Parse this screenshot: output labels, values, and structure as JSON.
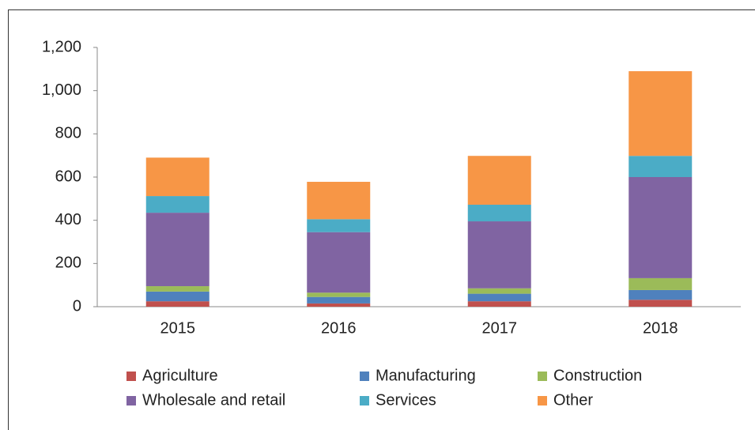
{
  "chart_data": {
    "type": "stacked_bar",
    "categories": [
      "2015",
      "2016",
      "2017",
      "2018"
    ],
    "series": [
      {
        "name": "Agriculture",
        "color": "#c0504d",
        "values": [
          25,
          15,
          25,
          32
        ]
      },
      {
        "name": "Manufacturing",
        "color": "#4f81bd",
        "values": [
          45,
          30,
          35,
          45
        ]
      },
      {
        "name": "Construction",
        "color": "#9bbb59",
        "values": [
          25,
          20,
          25,
          55
        ]
      },
      {
        "name": "Wholesale and retail",
        "color": "#8064a2",
        "values": [
          340,
          280,
          310,
          468
        ]
      },
      {
        "name": "Services",
        "color": "#4bacc6",
        "values": [
          77,
          60,
          77,
          98
        ]
      },
      {
        "name": "Other",
        "color": "#f79646",
        "values": [
          178,
          173,
          226,
          392
        ]
      }
    ],
    "ylim": [
      0,
      1200
    ],
    "yticks": [
      0,
      200,
      400,
      600,
      800,
      {
        "value": 1000,
        "label": "1,000"
      },
      {
        "value": 1200,
        "label": "1,200"
      }
    ],
    "grid": false
  }
}
